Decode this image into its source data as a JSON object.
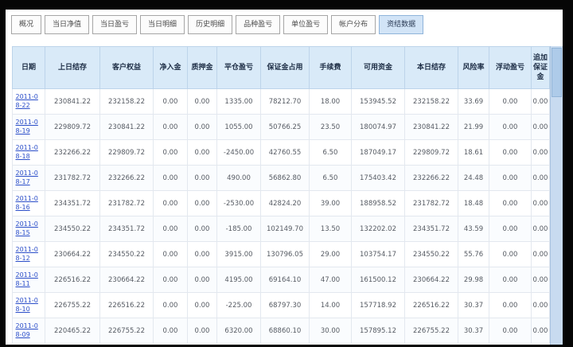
{
  "tabs": {
    "items": [
      {
        "label": "概况",
        "selected": false
      },
      {
        "label": "当日净值",
        "selected": false
      },
      {
        "label": "当日盈亏",
        "selected": false
      },
      {
        "label": "当日明细",
        "selected": false
      },
      {
        "label": "历史明细",
        "selected": false
      },
      {
        "label": "品种盈亏",
        "selected": false
      },
      {
        "label": "单位盈亏",
        "selected": false
      },
      {
        "label": "帐户分布",
        "selected": false
      },
      {
        "label": "资结数据",
        "selected": true
      }
    ]
  },
  "table": {
    "headers": [
      "日期",
      "上日结存",
      "客户权益",
      "净入金",
      "质押金",
      "平仓盈亏",
      "保证金占用",
      "手续费",
      "可用资金",
      "本日结存",
      "风险率",
      "浮动盈亏",
      "追加保证金"
    ],
    "rows": [
      [
        "2011-08-22",
        "230841.22",
        "232158.22",
        "0.00",
        "0.00",
        "1335.00",
        "78212.70",
        "18.00",
        "153945.52",
        "232158.22",
        "33.69",
        "0.00",
        "0.00"
      ],
      [
        "2011-08-19",
        "229809.72",
        "230841.22",
        "0.00",
        "0.00",
        "1055.00",
        "50766.25",
        "23.50",
        "180074.97",
        "230841.22",
        "21.99",
        "0.00",
        "0.00"
      ],
      [
        "2011-08-18",
        "232266.22",
        "229809.72",
        "0.00",
        "0.00",
        "-2450.00",
        "42760.55",
        "6.50",
        "187049.17",
        "229809.72",
        "18.61",
        "0.00",
        "0.00"
      ],
      [
        "2011-08-17",
        "231782.72",
        "232266.22",
        "0.00",
        "0.00",
        "490.00",
        "56862.80",
        "6.50",
        "175403.42",
        "232266.22",
        "24.48",
        "0.00",
        "0.00"
      ],
      [
        "2011-08-16",
        "234351.72",
        "231782.72",
        "0.00",
        "0.00",
        "-2530.00",
        "42824.20",
        "39.00",
        "188958.52",
        "231782.72",
        "18.48",
        "0.00",
        "0.00"
      ],
      [
        "2011-08-15",
        "234550.22",
        "234351.72",
        "0.00",
        "0.00",
        "-185.00",
        "102149.70",
        "13.50",
        "132202.02",
        "234351.72",
        "43.59",
        "0.00",
        "0.00"
      ],
      [
        "2011-08-12",
        "230664.22",
        "234550.22",
        "0.00",
        "0.00",
        "3915.00",
        "130796.05",
        "29.00",
        "103754.17",
        "234550.22",
        "55.76",
        "0.00",
        "0.00"
      ],
      [
        "2011-08-11",
        "226516.22",
        "230664.22",
        "0.00",
        "0.00",
        "4195.00",
        "69164.10",
        "47.00",
        "161500.12",
        "230664.22",
        "29.98",
        "0.00",
        "0.00"
      ],
      [
        "2011-08-10",
        "226755.22",
        "226516.22",
        "0.00",
        "0.00",
        "-225.00",
        "68797.30",
        "14.00",
        "157718.92",
        "226516.22",
        "30.37",
        "0.00",
        "0.00"
      ],
      [
        "2011-08-09",
        "220465.22",
        "226755.22",
        "0.00",
        "0.00",
        "6320.00",
        "68860.10",
        "30.00",
        "157895.12",
        "226755.22",
        "30.37",
        "0.00",
        "0.00"
      ]
    ]
  },
  "colors": {
    "header_bg": "#d9eaf8",
    "selected_tab_bg": "#d2e4f7",
    "date_link": "#2b4ec9",
    "scrollbar": "#c8dbf0",
    "frame": "#060606"
  }
}
